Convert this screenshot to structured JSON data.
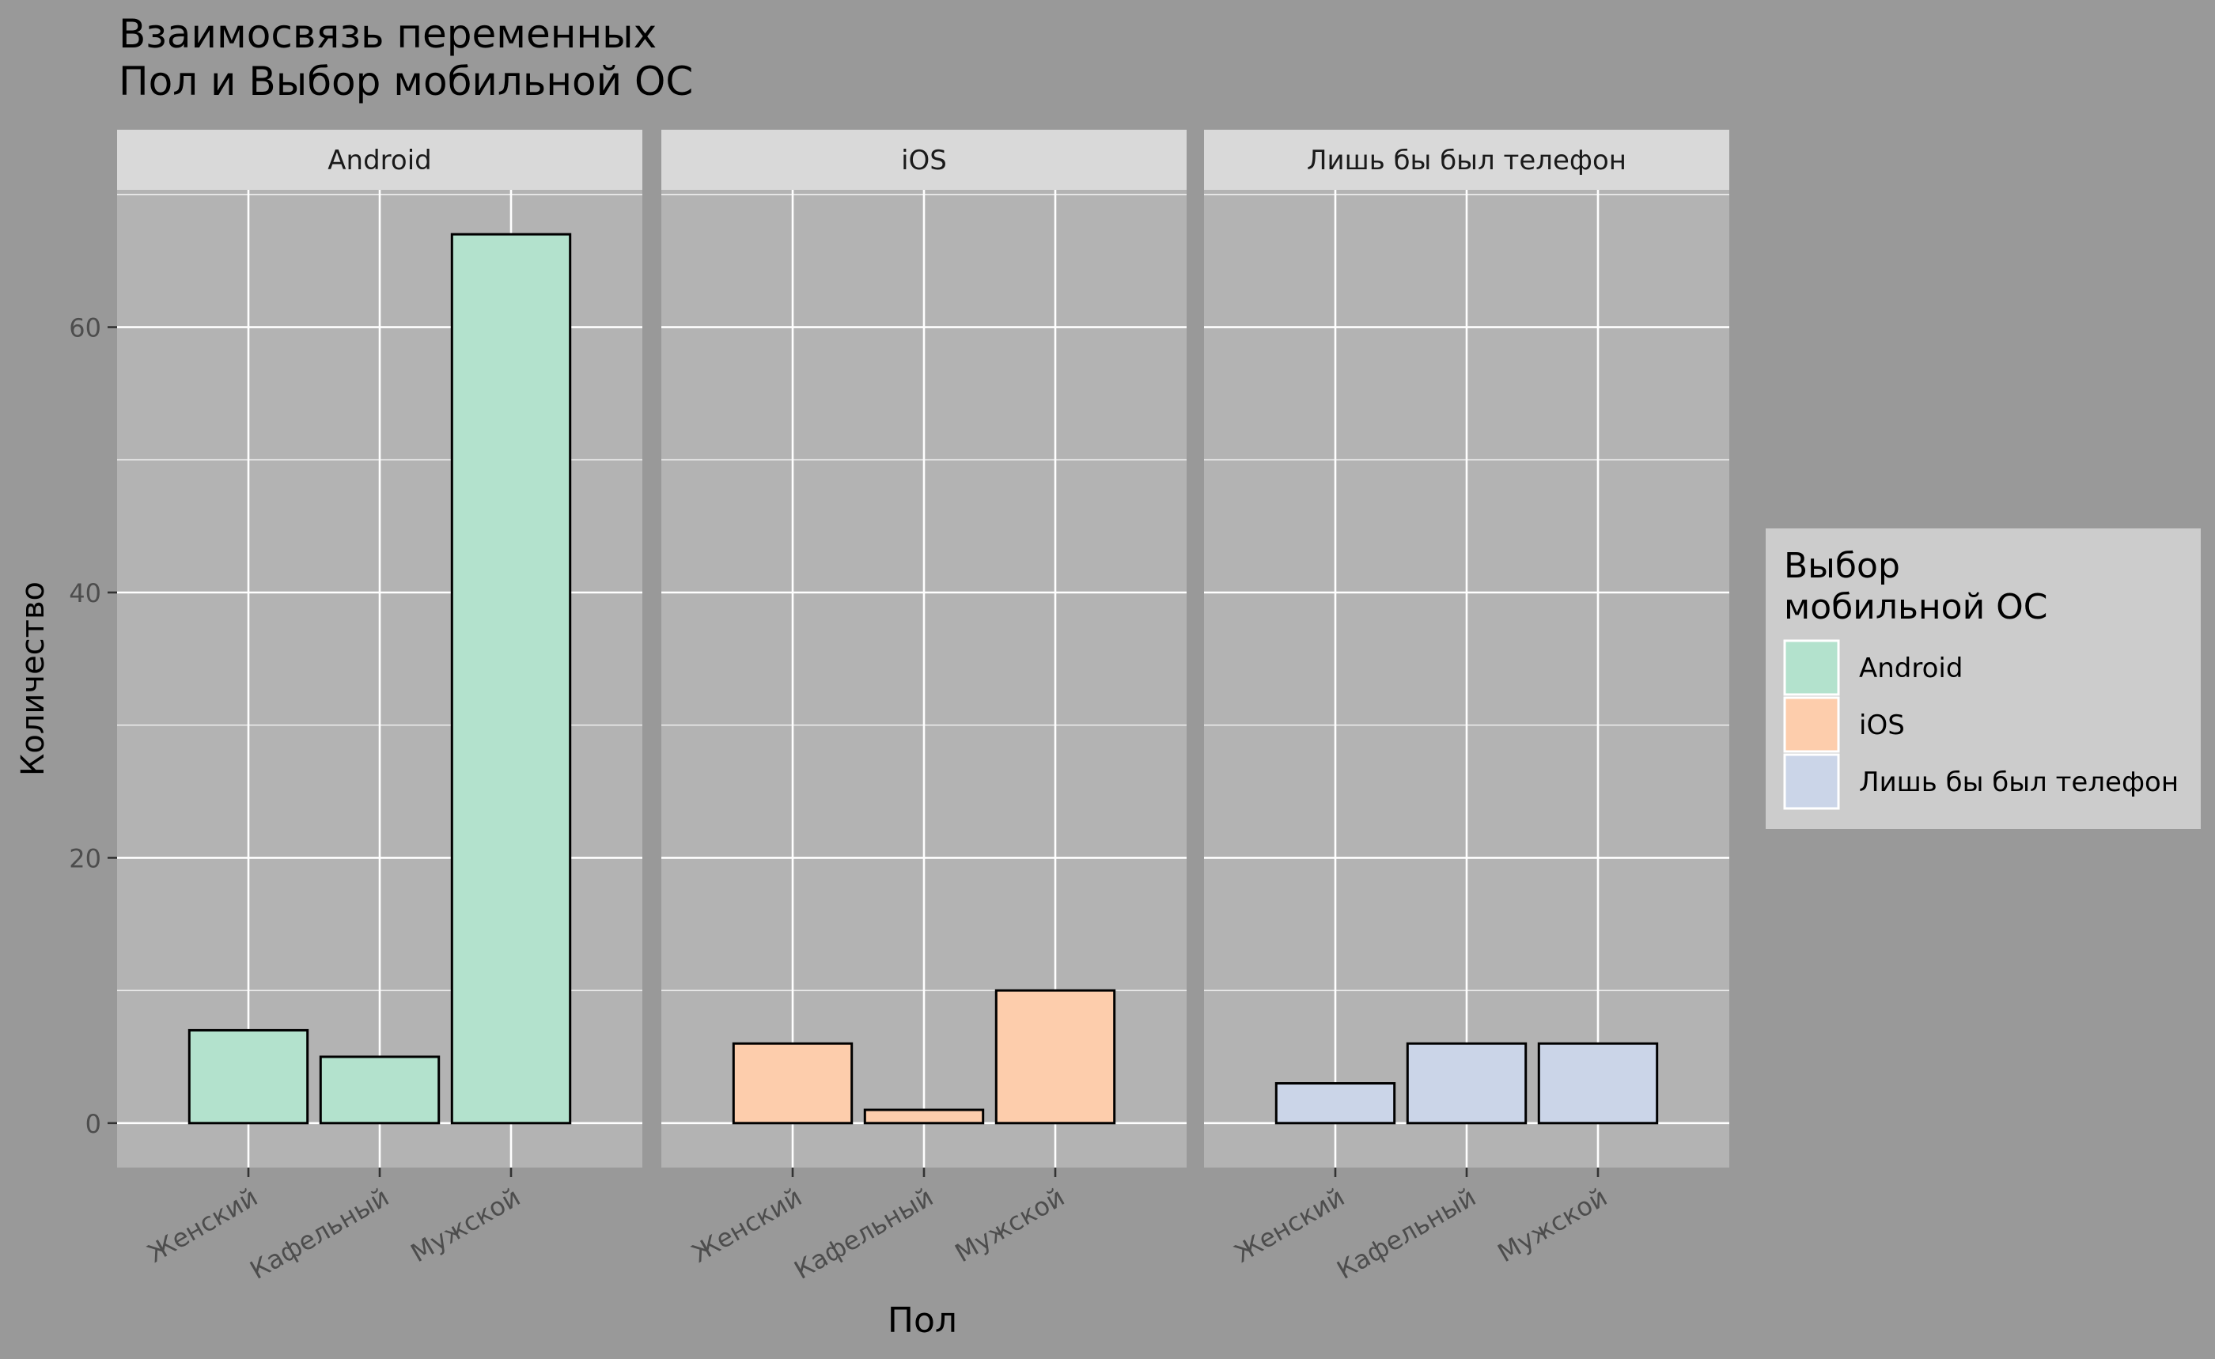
{
  "chart_data": {
    "type": "bar",
    "title": "Взаимосвязь переменных\n Пол и Выбор мобильной ОС",
    "xlabel": "Пол",
    "ylabel": "Количество",
    "categories": [
      "Женский",
      "Кафельный",
      "Мужской"
    ],
    "y_ticks": [
      0,
      20,
      40,
      60
    ],
    "ylim": [
      -3.35,
      70.35
    ],
    "grid": true,
    "legend_position": "right",
    "legend_title": "Выбор\nмобильной ОС",
    "facets": [
      {
        "name": "Android",
        "values": [
          7,
          5,
          67
        ],
        "color": "#B3E2CD"
      },
      {
        "name": "iOS",
        "values": [
          6,
          1,
          10
        ],
        "color": "#FDCDAC"
      },
      {
        "name": "Лишь бы был телефон",
        "values": [
          3,
          6,
          6
        ],
        "color": "#CBD5E8"
      }
    ]
  },
  "colors": {
    "background": "#999999",
    "panel": "#B3B3B3",
    "strip": "#D9D9D9",
    "legend_box": "#CCCCCC",
    "grid": "#FFFFFF",
    "bar_outline": "#000000"
  }
}
